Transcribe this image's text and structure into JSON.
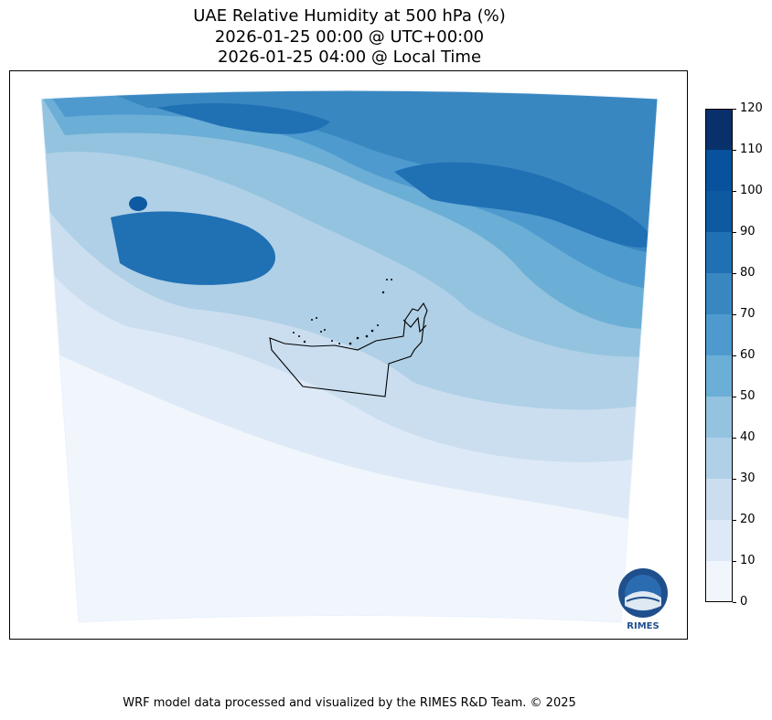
{
  "title": {
    "line1": "UAE Relative Humidity at 500 hPa (%)",
    "line2": "2026-01-25 00:00 @ UTC+00:00",
    "line3": "2026-01-25 04:00 @ Local Time"
  },
  "colorbar": {
    "ticks": [
      "0",
      "10",
      "20",
      "30",
      "40",
      "50",
      "60",
      "70",
      "80",
      "90",
      "100",
      "110",
      "120"
    ],
    "levels": [
      0,
      10,
      20,
      30,
      40,
      50,
      60,
      70,
      80,
      90,
      100,
      110,
      120
    ],
    "colors": [
      "#f0f6fc",
      "#dde9f6",
      "#cbdef0",
      "#afd0e6",
      "#93c3df",
      "#6baed6",
      "#4e9ace",
      "#3987c0",
      "#2070b4",
      "#0e5aa2",
      "#08519c",
      "#08306b"
    ]
  },
  "logo": {
    "text": "RIMES"
  },
  "footer": "WRF model data processed and visualized by the RIMES R&D Team. © 2025"
}
